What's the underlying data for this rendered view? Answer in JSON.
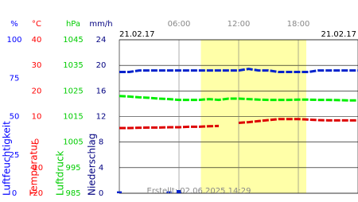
{
  "chart_data": {
    "type": "line",
    "start_date": "21.02.17",
    "end_date": "21.02.17",
    "created": "Erstellt: 02.06.2025 14:29",
    "xlim": [
      0,
      24
    ],
    "xticks": [
      {
        "value": 6,
        "label": "06:00"
      },
      {
        "value": 12,
        "label": "12:00"
      },
      {
        "value": 18,
        "label": "18:00"
      }
    ],
    "daylight": [
      8.2,
      18.8
    ],
    "grid": true,
    "axes": [
      {
        "unit": "%",
        "label": "Luftfeuchtigkeit",
        "color": "#0000ff",
        "lim": [
          0,
          100
        ],
        "ticks": [
          0,
          25,
          50,
          75,
          100
        ]
      },
      {
        "unit": "°C",
        "label": "Temperatur",
        "color": "#ff0000",
        "lim": [
          -20,
          40
        ],
        "ticks": [
          -20,
          -10,
          0,
          10,
          20,
          30,
          40
        ]
      },
      {
        "unit": "hPa",
        "label": "Luftdruck",
        "color": "#00cc00",
        "lim": [
          985,
          1045
        ],
        "ticks": [
          985,
          995,
          1005,
          1015,
          1025,
          1035,
          1045
        ]
      },
      {
        "unit": "mm/h",
        "label": "Niederschlag",
        "color": "#000080",
        "lim": [
          0,
          24
        ],
        "ticks": [
          0,
          4,
          8,
          12,
          16,
          20,
          24
        ]
      }
    ],
    "x": [
      0,
      1,
      2,
      3,
      4,
      5,
      6,
      7,
      8,
      9,
      10,
      11,
      12,
      13,
      14,
      15,
      16,
      17,
      18,
      19,
      20,
      21,
      22,
      23,
      24
    ],
    "series": [
      {
        "name": "Luftfeuchtigkeit",
        "axis": 0,
        "color": "#0022cc",
        "kind": "line",
        "values": [
          79,
          79,
          80,
          80,
          80,
          80,
          80,
          80,
          80,
          80,
          80,
          80,
          80,
          81,
          80,
          80,
          79,
          79,
          79,
          79,
          80,
          80,
          80,
          80,
          80
        ]
      },
      {
        "name": "Temperatur",
        "axis": 1,
        "color": "#dd0000",
        "kind": "line",
        "values": [
          5.5,
          5.5,
          5.6,
          5.7,
          5.7,
          5.8,
          5.8,
          6,
          6,
          6.2,
          6.3,
          null,
          7.5,
          7.8,
          8.2,
          8.6,
          9,
          9,
          9,
          8.8,
          8.6,
          8.5,
          8.5,
          8.5,
          8.5
        ]
      },
      {
        "name": "Luftdruck",
        "axis": 2,
        "color": "#00ee00",
        "kind": "line",
        "values": [
          1023,
          1022.8,
          1022.5,
          1022.3,
          1022,
          1021.8,
          1021.5,
          1021.5,
          1021.5,
          1021.8,
          1021.5,
          1022,
          1022,
          1021.8,
          1021.6,
          1021.5,
          1021.5,
          1021.5,
          1021.6,
          1021.6,
          1021.5,
          1021.5,
          1021.4,
          1021.3,
          1021.3
        ]
      },
      {
        "name": "Niederschlag",
        "axis": 3,
        "color": "#0022cc",
        "kind": "bar",
        "values": [
          0.3,
          0,
          0,
          0,
          0,
          0.3,
          0.5,
          0,
          0,
          0,
          0,
          0,
          0,
          0,
          0,
          0,
          0,
          0,
          0,
          0,
          0,
          0,
          0,
          0,
          0
        ]
      }
    ]
  }
}
